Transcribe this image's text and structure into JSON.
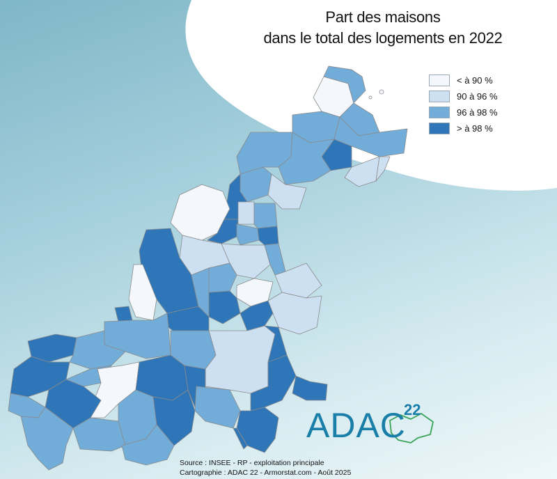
{
  "map": {
    "title_line1": "Part des maisons",
    "title_line2": "dans le total des logements en 2022",
    "legend": [
      {
        "label": "< à 90 %",
        "color": "#f4f8fc"
      },
      {
        "label": "90 à 96 %",
        "color": "#cde0f1"
      },
      {
        "label": "96 à 98 %",
        "color": "#72acd8"
      },
      {
        "label": "> à 98 %",
        "color": "#2f76b8"
      }
    ],
    "source_line1": "Source : INSEE - RP - exploitation principale",
    "source_line2": "Cartographie : ADAC 22 - Armorstat.com - Août 2025"
  },
  "logo": {
    "text": "ADAC",
    "superscript": "22"
  }
}
